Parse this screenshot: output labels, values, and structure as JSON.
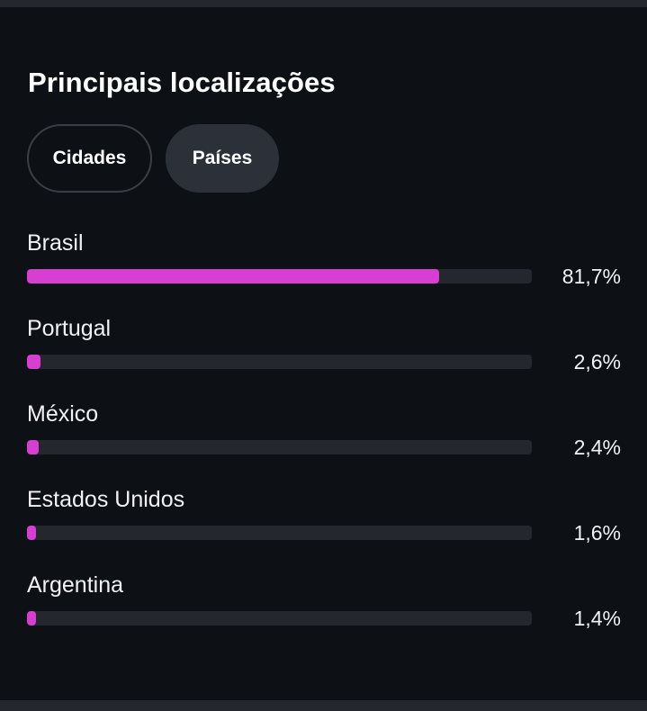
{
  "panel": {
    "title": "Principais localizações"
  },
  "tabs": [
    {
      "label": "Cidades",
      "selected": false
    },
    {
      "label": "Países",
      "selected": true
    }
  ],
  "colors": {
    "bar_fill": "#d63fd1",
    "bar_track": "#24272d",
    "background": "#0d1015",
    "selected_tab": "#2c3038"
  },
  "locations": [
    {
      "name": "Brasil",
      "percent_label": "81,7%",
      "share": 0.817
    },
    {
      "name": "Portugal",
      "percent_label": "2,6%",
      "share": 0.026
    },
    {
      "name": "México",
      "percent_label": "2,4%",
      "share": 0.024
    },
    {
      "name": "Estados Unidos",
      "percent_label": "1,6%",
      "share": 0.016
    },
    {
      "name": "Argentina",
      "percent_label": "1,4%",
      "share": 0.014
    }
  ]
}
